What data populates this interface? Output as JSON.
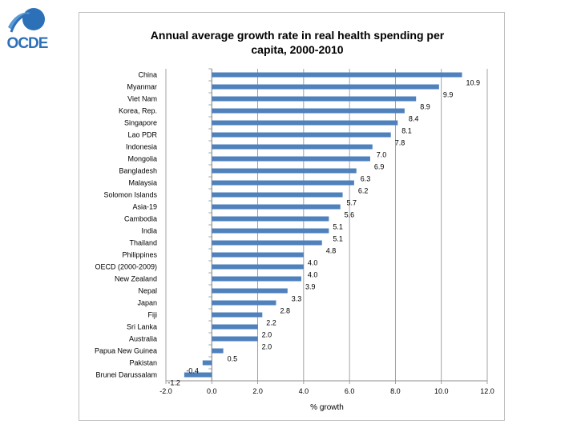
{
  "logo": {
    "text": "OCDE"
  },
  "chart_data": {
    "type": "bar",
    "orientation": "horizontal",
    "title_lines": [
      "Annual average growth rate in real health spending per",
      "capita, 2000-2010"
    ],
    "xlabel": "% growth",
    "ylabel": "",
    "xlim": [
      -2.0,
      12.0
    ],
    "xticks": [
      "-2.0",
      "0.0",
      "2.0",
      "4.0",
      "6.0",
      "8.0",
      "10.0",
      "12.0"
    ],
    "bar_color": "#4f81bd",
    "grid": true,
    "categories": [
      "China",
      "Myanmar",
      "Viet Nam",
      "Korea, Rep.",
      "Singapore",
      "Lao PDR",
      "Indonesia",
      "Mongolia",
      "Bangladesh",
      "Malaysia",
      "Solomon Islands",
      "Asia-19",
      "Cambodia",
      "India",
      "Thailand",
      "Philippines",
      "OECD (2000-2009)",
      "New Zealand",
      "Nepal",
      "Japan",
      "Fiji",
      "Sri Lanka",
      "Australia",
      "Papua New Guinea",
      "Pakistan",
      "Brunei Darussalam"
    ],
    "values": [
      10.9,
      9.9,
      8.9,
      8.4,
      8.1,
      7.8,
      7.0,
      6.9,
      6.3,
      6.2,
      5.7,
      5.6,
      5.1,
      5.1,
      4.8,
      4.0,
      4.0,
      3.9,
      3.3,
      2.8,
      2.2,
      2.0,
      2.0,
      0.5,
      -0.4,
      -1.2
    ],
    "data_labels": [
      "10.9",
      "9.9",
      "8.9",
      "8.4",
      "8.1",
      "7.8",
      "7.0",
      "6.9",
      "6.3",
      "6.2",
      "5.7",
      "5.6",
      "5.1",
      "5.1",
      "4.8",
      "4.0",
      "4.0",
      "3.9",
      "3.3",
      "2.8",
      "2.2",
      "2.0",
      "2.0",
      "0.5",
      "-0.4",
      "-1.2"
    ]
  }
}
